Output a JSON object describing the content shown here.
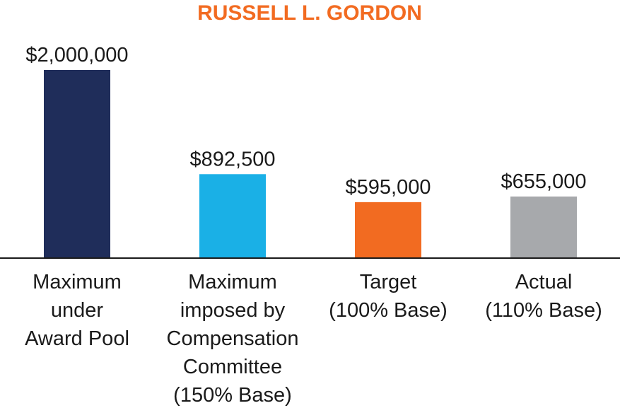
{
  "chart_data": {
    "type": "bar",
    "title": "RUSSELL L. GORDON",
    "title_color": "#f26b21",
    "categories": [
      [
        "Maximum",
        "under",
        "Award Pool"
      ],
      [
        "Maximum",
        "imposed by",
        "Compensation",
        "Committee",
        "(150% Base)"
      ],
      [
        "Target",
        "(100% Base)"
      ],
      [
        "Actual",
        "(110% Base)"
      ]
    ],
    "values": [
      2000000,
      892500,
      595000,
      655000
    ],
    "value_labels": [
      "$2,000,000",
      "$892,500",
      "$595,000",
      "$655,000"
    ],
    "bar_colors": [
      "#1f2d5a",
      "#1ab0e6",
      "#f26b21",
      "#a7a9ac"
    ],
    "ylim": [
      0,
      2000000
    ],
    "xlabel": "",
    "ylabel": "",
    "grid": false,
    "legend": "none"
  }
}
